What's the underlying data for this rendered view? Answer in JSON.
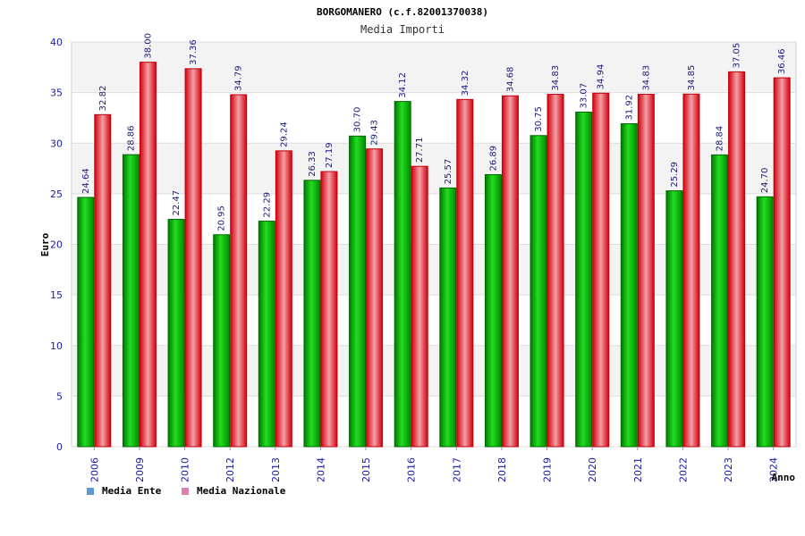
{
  "chart_data": {
    "type": "bar",
    "title": "BORGOMANERO (c.f.82001370038)",
    "subtitle": "Media Importi",
    "xlabel": "Anno",
    "ylabel": "Euro",
    "ylim": [
      0,
      40
    ],
    "yticks": [
      0,
      5,
      10,
      15,
      20,
      25,
      30,
      35,
      40
    ],
    "grid": true,
    "legend_position": "bottom-left",
    "categories": [
      "2006",
      "2009",
      "2010",
      "2012",
      "2013",
      "2014",
      "2015",
      "2016",
      "2017",
      "2018",
      "2019",
      "2020",
      "2021",
      "2022",
      "2023",
      "2024"
    ],
    "series": [
      {
        "name": "Media Ente",
        "color": "#00b000",
        "legend_color": "#5b9bd5",
        "values": [
          24.64,
          28.86,
          22.47,
          20.95,
          22.29,
          26.33,
          30.7,
          34.12,
          25.57,
          26.89,
          30.75,
          33.07,
          31.92,
          25.29,
          28.84,
          24.7
        ],
        "labels": [
          "24.64",
          "28.86",
          "22.47",
          "20.95",
          "22.29",
          "26.33",
          "30.70",
          "34.12",
          "25.57",
          "26.89",
          "30.75",
          "33.07",
          "31.92",
          "25.29",
          "28.84",
          "24.70"
        ]
      },
      {
        "name": "Media Nazionale",
        "color": "#e8101e",
        "legend_color": "#d982b0",
        "values": [
          32.82,
          38.0,
          37.36,
          34.79,
          29.24,
          27.19,
          29.43,
          27.71,
          34.32,
          34.68,
          34.83,
          34.94,
          34.83,
          34.85,
          37.05,
          36.46
        ],
        "labels": [
          "32.82",
          "38.00",
          "37.36",
          "34.79",
          "29.24",
          "27.19",
          "29.43",
          "27.71",
          "34.32",
          "34.68",
          "34.83",
          "34.94",
          "34.83",
          "34.85",
          "37.05",
          "36.46"
        ]
      }
    ]
  }
}
